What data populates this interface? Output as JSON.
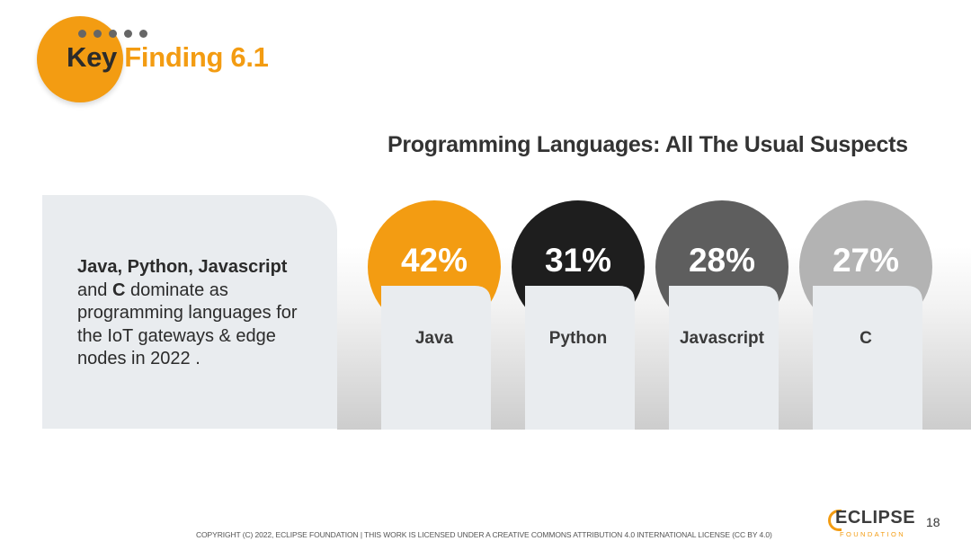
{
  "header": {
    "title_part1": "Key",
    "title_part2": "Finding 6.1"
  },
  "summary": {
    "bold1": "Java, Python, Javascript",
    "text2": "and ",
    "bold2": "C",
    "text3": " dominate as programming languages for the IoT gateways & edge nodes in 2022 ."
  },
  "chart_data": {
    "type": "bar",
    "title": "Programming Languages: All The Usual Suspects",
    "categories": [
      "Java",
      "Python",
      "Javascript",
      "C"
    ],
    "values": [
      42,
      31,
      28,
      27
    ],
    "value_labels": [
      "42%",
      "31%",
      "28%",
      "27%"
    ],
    "colors": [
      "#f39c12",
      "#1e1e1e",
      "#5e5e5e",
      "#b3b3b3"
    ],
    "unit": "%"
  },
  "footer": {
    "copyright": "COPYRIGHT (C) 2022, ECLIPSE FOUNDATION | THIS WORK IS LICENSED UNDER A CREATIVE COMMONS ATTRIBUTION 4.0 INTERNATIONAL LICENSE (CC BY 4.0)",
    "logo_text": "ECLIPSE",
    "logo_sub": "FOUNDATION",
    "page_number": "18"
  }
}
